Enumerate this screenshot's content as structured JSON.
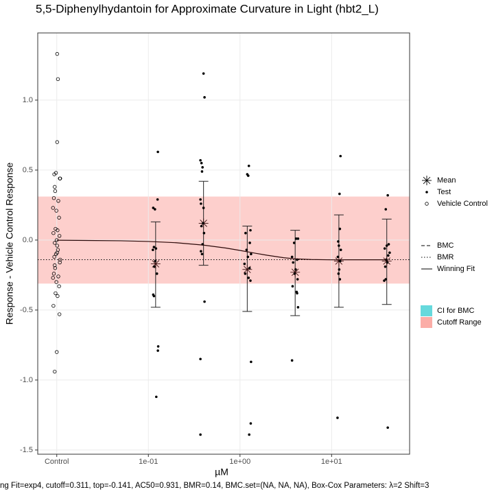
{
  "chart_data": {
    "type": "scatter",
    "title": "5,5-Diphenylhydantoin for Approximate Curvature in Light (hbt2_L)",
    "xlabel": "µM",
    "ylabel": "Response - Vehicle Control Response",
    "caption": "ng Fit=exp4, cutoff=0.311, top=-0.141, AC50=0.931, BMR=0.14, BMC.set=(NA, NA, NA), Box-Cox Parameters: λ=2 Shift=3",
    "log_x": true,
    "grid": true,
    "xlim": [
      0.0062,
      71
    ],
    "xticks": [
      {
        "value": 0.01,
        "label": "Control"
      },
      {
        "value": 0.1,
        "label": "1e-01"
      },
      {
        "value": 1,
        "label": "1e+00"
      },
      {
        "value": 10,
        "label": "1e+01"
      }
    ],
    "ylim": [
      -1.53,
      1.48
    ],
    "yticks": [
      {
        "value": 1,
        "label": "1.0"
      },
      0.5,
      {
        "value": 0,
        "label": "0.0"
      },
      -0.5,
      {
        "value": -1,
        "label": "-1.0"
      },
      -1.5
    ],
    "series": [
      {
        "name": "Mean",
        "marker": "asterisk",
        "color": "#3a1010",
        "x": [
          0.12,
          0.4,
          1.2,
          4,
          12,
          40
        ],
        "values": [
          -0.17,
          0.12,
          -0.21,
          -0.23,
          -0.15,
          -0.15
        ],
        "ci_low": [
          -0.48,
          -0.18,
          -0.51,
          -0.54,
          -0.48,
          -0.46
        ],
        "ci_high": [
          0.13,
          0.42,
          0.1,
          0.07,
          0.18,
          0.15
        ]
      },
      {
        "name": "Test",
        "marker": "dot",
        "color": "#000000",
        "x": [
          0.127,
          0.126,
          0.113,
          0.118,
          0.115,
          0.121,
          0.112,
          0.119,
          0.116,
          0.124,
          0.113,
          0.115,
          0.128,
          0.127,
          0.122,
          0.4,
          0.41,
          0.37,
          0.38,
          0.39,
          0.385,
          0.37,
          0.375,
          0.4,
          0.395,
          0.38,
          0.405,
          0.39,
          0.375,
          0.385,
          0.41,
          0.37,
          0.37,
          1.25,
          1.2,
          1.23,
          1.3,
          1.15,
          1.28,
          1.18,
          1.32,
          1.22,
          1.12,
          1.27,
          1.14,
          1.24,
          1.3,
          1.32,
          1.31,
          1.26,
          4.3,
          4.1,
          3.9,
          3.7,
          4.2,
          3.8,
          4.05,
          3.95,
          4.25,
          3.75,
          4.15,
          4.2,
          4.3,
          3.7,
          12.5,
          12.2,
          12.3,
          11.8,
          12.0,
          12.6,
          11.7,
          12.4,
          12.1,
          11.9,
          12.3,
          11.6,
          41,
          39,
          42,
          40,
          38,
          43,
          41.5,
          39.5,
          40.5,
          38.5,
          39,
          37.5,
          41
        ],
        "values": [
          0.63,
          0.29,
          0.23,
          0.22,
          -0.05,
          -0.06,
          -0.07,
          -0.15,
          -0.19,
          -0.24,
          -0.39,
          -0.4,
          -0.76,
          -0.79,
          -1.12,
          1.19,
          1.02,
          0.57,
          0.55,
          0.52,
          0.49,
          0.29,
          0.26,
          0.23,
          0.12,
          0.1,
          0.05,
          -0.03,
          -0.08,
          -0.1,
          -0.44,
          -0.85,
          -1.39,
          0.53,
          0.47,
          0.46,
          0.07,
          0.05,
          -0.02,
          -0.07,
          -0.1,
          -0.12,
          -0.17,
          -0.2,
          -0.24,
          -0.27,
          -0.29,
          -0.87,
          -1.31,
          -1.39,
          0.01,
          0.01,
          -0.02,
          -0.12,
          -0.14,
          -0.16,
          -0.21,
          -0.24,
          -0.28,
          -0.33,
          -0.37,
          -0.38,
          -0.48,
          -0.86,
          0.6,
          0.33,
          0.08,
          -0.01,
          -0.04,
          -0.07,
          -0.12,
          -0.15,
          -0.21,
          -0.24,
          -0.28,
          -1.27,
          0.32,
          0.22,
          -0.03,
          -0.04,
          -0.06,
          -0.09,
          -0.11,
          -0.14,
          -0.16,
          -0.19,
          -0.28,
          -0.29,
          -1.34
        ]
      },
      {
        "name": "Vehicle Control",
        "marker": "open-circle",
        "color": "#000000",
        "x": [
          0.0101,
          0.0103,
          0.0101,
          0.0098,
          0.0094,
          0.0109,
          0.0108,
          0.0095,
          0.0096,
          0.0093,
          0.0104,
          0.0091,
          0.0099,
          0.0106,
          0.0097,
          0.0102,
          0.0092,
          0.0107,
          0.01,
          0.0095,
          0.0101,
          0.0103,
          0.0101,
          0.0098,
          0.0094,
          0.0109,
          0.0108,
          0.0095,
          0.0096,
          0.0093,
          0.0104,
          0.0091,
          0.0099,
          0.0106,
          0.0097,
          0.0102,
          0.0092,
          0.0107,
          0.01,
          0.0095
        ],
        "values": [
          1.33,
          1.15,
          0.7,
          0.48,
          0.47,
          0.44,
          0.44,
          0.38,
          0.35,
          0.3,
          0.28,
          0.23,
          0.21,
          0.16,
          0.08,
          0.07,
          0.05,
          0.03,
          0.0,
          -0.02,
          -0.04,
          -0.07,
          -0.09,
          -0.1,
          -0.12,
          -0.14,
          -0.16,
          -0.18,
          -0.2,
          -0.24,
          -0.26,
          -0.27,
          -0.3,
          -0.33,
          -0.38,
          -0.4,
          -0.47,
          -0.53,
          -0.8,
          -0.94
        ]
      },
      {
        "name": "Winning Fit",
        "line": "solid",
        "color": "#2a0808",
        "x": [
          0.01,
          0.05,
          0.1,
          0.2,
          0.4,
          0.7,
          1,
          1.5,
          2,
          3,
          4,
          6,
          10,
          20,
          40
        ],
        "values": [
          -0.001,
          -0.005,
          -0.01,
          -0.019,
          -0.036,
          -0.057,
          -0.074,
          -0.095,
          -0.109,
          -0.126,
          -0.134,
          -0.139,
          -0.141,
          -0.141,
          -0.141
        ]
      }
    ],
    "lines": [
      {
        "name": "BMC",
        "style": "dashed"
      },
      {
        "name": "BMR",
        "style": "dotted",
        "y": -0.14
      }
    ],
    "bands": [
      {
        "name": "CI for BMC",
        "color": "#00bfc4"
      },
      {
        "name": "Cutoff Range",
        "color": "#f8766d",
        "ylim": [
          -0.311,
          0.311
        ]
      }
    ]
  }
}
